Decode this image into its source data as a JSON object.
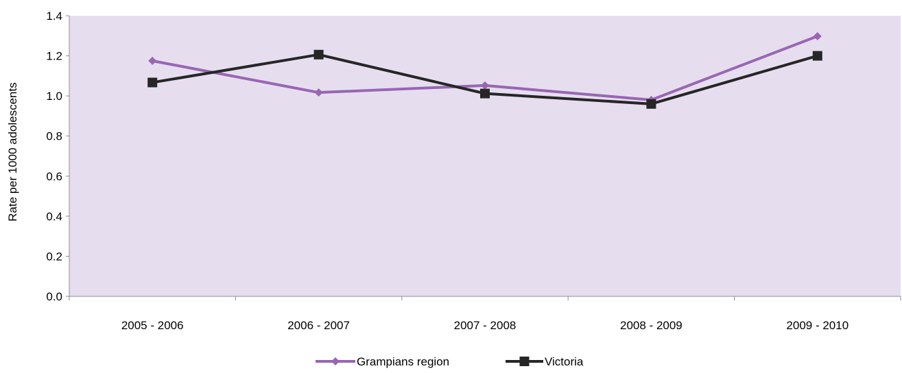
{
  "chart_data": {
    "type": "line",
    "title": "",
    "xlabel": "",
    "ylabel": "Rate per 1000 adolescents",
    "categories": [
      "2005 - 2006",
      "2006 - 2007",
      "2007 - 2008",
      "2008 - 2009",
      "2009 - 2010"
    ],
    "ylim": [
      0,
      1.4
    ],
    "yticks": [
      "0.0",
      "0.2",
      "0.4",
      "0.6",
      "0.8",
      "1.0",
      "1.2",
      "1.4"
    ],
    "grid": false,
    "legend_position": "bottom",
    "plot_background": "#e6deef",
    "series": [
      {
        "name": "Grampians region",
        "color": "#9966b3",
        "marker": "diamond",
        "values": [
          1.175,
          1.017,
          1.052,
          0.98,
          1.298
        ]
      },
      {
        "name": "Victoria",
        "color": "#262626",
        "marker": "square",
        "values": [
          1.067,
          1.206,
          1.012,
          0.96,
          1.2
        ]
      }
    ]
  }
}
